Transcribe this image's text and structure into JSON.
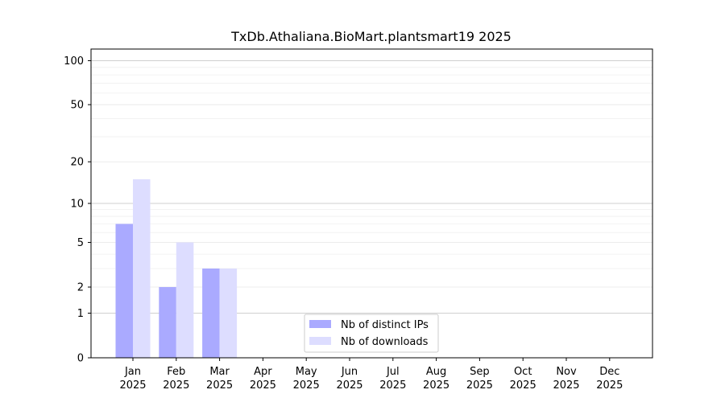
{
  "chart_data": {
    "type": "bar",
    "title": "TxDb.Athaliana.BioMart.plantsmart19 2025",
    "xlabel": "",
    "ylabel": "",
    "y_scale": "log1p",
    "ylim": [
      0,
      120
    ],
    "y_ticks": [
      0,
      1,
      2,
      5,
      10,
      20,
      50,
      100
    ],
    "y_tick_labels": [
      "0",
      "1",
      "2",
      "5",
      "10",
      "20",
      "50",
      "100"
    ],
    "grid": "horizontal",
    "legend_position": "bottom-center",
    "categories": [
      {
        "month": "Jan",
        "year": "2025"
      },
      {
        "month": "Feb",
        "year": "2025"
      },
      {
        "month": "Mar",
        "year": "2025"
      },
      {
        "month": "Apr",
        "year": "2025"
      },
      {
        "month": "May",
        "year": "2025"
      },
      {
        "month": "Jun",
        "year": "2025"
      },
      {
        "month": "Jul",
        "year": "2025"
      },
      {
        "month": "Aug",
        "year": "2025"
      },
      {
        "month": "Sep",
        "year": "2025"
      },
      {
        "month": "Oct",
        "year": "2025"
      },
      {
        "month": "Nov",
        "year": "2025"
      },
      {
        "month": "Dec",
        "year": "2025"
      }
    ],
    "series": [
      {
        "name": "Nb of distinct IPs",
        "color": "#aaaaff",
        "values": [
          7,
          2,
          3,
          0,
          0,
          0,
          0,
          0,
          0,
          0,
          0,
          0
        ]
      },
      {
        "name": "Nb of downloads",
        "color": "#ddddff",
        "values": [
          15,
          5,
          3,
          0,
          0,
          0,
          0,
          0,
          0,
          0,
          0,
          0
        ]
      }
    ]
  }
}
